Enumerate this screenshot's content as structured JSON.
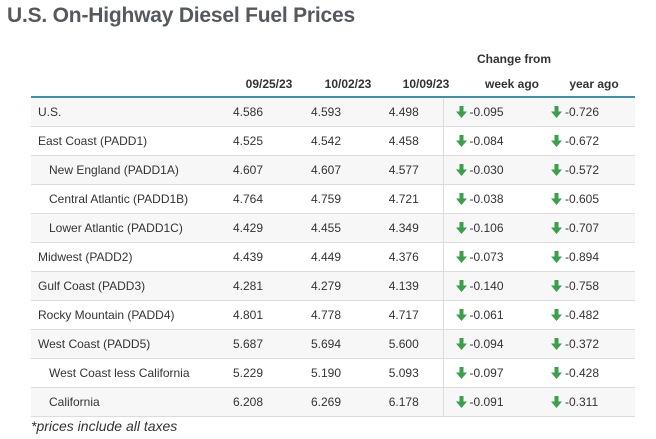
{
  "title": "U.S. On-Highway Diesel Fuel Prices",
  "header": {
    "change_group": "Change from",
    "dates": [
      "09/25/23",
      "10/02/23",
      "10/09/23"
    ],
    "week_ago": "week ago",
    "year_ago": "year ago"
  },
  "colors": {
    "accent": "#3d8fb0",
    "region_text": "#2c7ea4",
    "down_arrow": "#3aa04a"
  },
  "chart_data": {
    "type": "table",
    "title": "U.S. On-Highway Diesel Fuel Prices",
    "columns": [
      "",
      "09/25/23",
      "10/02/23",
      "10/09/23",
      "week ago",
      "year ago"
    ],
    "column_group": "Change from",
    "rows": [
      {
        "region": "U.S.",
        "sub": false,
        "p1": "4.586",
        "p2": "4.593",
        "p3": "4.498",
        "week": "-0.095",
        "year": "-0.726"
      },
      {
        "region": "East Coast (PADD1)",
        "sub": false,
        "p1": "4.525",
        "p2": "4.542",
        "p3": "4.458",
        "week": "-0.084",
        "year": "-0.672"
      },
      {
        "region": "New England (PADD1A)",
        "sub": true,
        "p1": "4.607",
        "p2": "4.607",
        "p3": "4.577",
        "week": "-0.030",
        "year": "-0.572"
      },
      {
        "region": "Central Atlantic (PADD1B)",
        "sub": true,
        "p1": "4.764",
        "p2": "4.759",
        "p3": "4.721",
        "week": "-0.038",
        "year": "-0.605"
      },
      {
        "region": "Lower Atlantic (PADD1C)",
        "sub": true,
        "p1": "4.429",
        "p2": "4.455",
        "p3": "4.349",
        "week": "-0.106",
        "year": "-0.707"
      },
      {
        "region": "Midwest (PADD2)",
        "sub": false,
        "p1": "4.439",
        "p2": "4.449",
        "p3": "4.376",
        "week": "-0.073",
        "year": "-0.894"
      },
      {
        "region": "Gulf Coast (PADD3)",
        "sub": false,
        "p1": "4.281",
        "p2": "4.279",
        "p3": "4.139",
        "week": "-0.140",
        "year": "-0.758"
      },
      {
        "region": "Rocky Mountain (PADD4)",
        "sub": false,
        "p1": "4.801",
        "p2": "4.778",
        "p3": "4.717",
        "week": "-0.061",
        "year": "-0.482"
      },
      {
        "region": "West Coast (PADD5)",
        "sub": false,
        "p1": "5.687",
        "p2": "5.694",
        "p3": "5.600",
        "week": "-0.094",
        "year": "-0.372"
      },
      {
        "region": "West Coast less California",
        "sub": true,
        "p1": "5.229",
        "p2": "5.190",
        "p3": "5.093",
        "week": "-0.097",
        "year": "-0.428"
      },
      {
        "region": "California",
        "sub": true,
        "p1": "6.208",
        "p2": "6.269",
        "p3": "6.178",
        "week": "-0.091",
        "year": "-0.311"
      }
    ]
  },
  "footnote": "*prices include all taxes"
}
